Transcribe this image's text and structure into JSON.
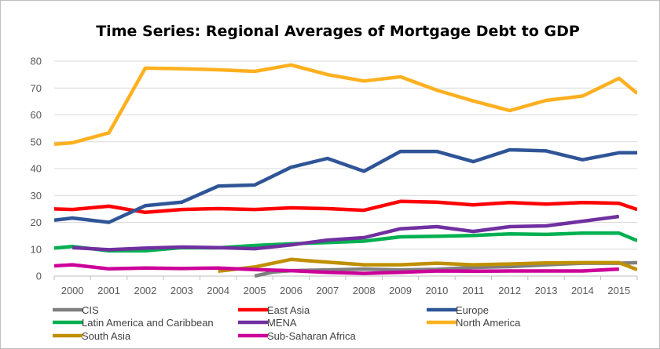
{
  "chart_data": {
    "type": "line",
    "title": "Time Series: Regional Averages of Mortgage Debt to GDP",
    "xlabel": "",
    "ylabel": "",
    "ylim": [
      0,
      80
    ],
    "yticks": [
      0,
      10,
      20,
      30,
      40,
      50,
      60,
      70,
      80
    ],
    "categories": [
      "2000",
      "2001",
      "2002",
      "2003",
      "2004",
      "2005",
      "2006",
      "2007",
      "2008",
      "2009",
      "2010",
      "2011",
      "2012",
      "2013",
      "2014",
      "2015"
    ],
    "x_start": 1999.5,
    "x_end": 2015.5,
    "grid": true,
    "legend_position": "bottom",
    "series": [
      {
        "name": "CIS",
        "color": "#7f7f7f",
        "points": [
          [
            2005,
            0
          ],
          [
            2005.5,
            1.5
          ],
          [
            2006,
            2
          ],
          [
            2007,
            2.3
          ],
          [
            2008,
            2.6
          ],
          [
            2009,
            2.3
          ],
          [
            2010,
            2.5
          ],
          [
            2011,
            3.2
          ],
          [
            2012,
            3.5
          ],
          [
            2013,
            4.2
          ],
          [
            2014,
            4.8
          ],
          [
            2015,
            4.8
          ],
          [
            2015.5,
            5
          ]
        ]
      },
      {
        "name": "East Asia",
        "color": "#ff0000",
        "points": [
          [
            1999.5,
            25
          ],
          [
            2000,
            24.8
          ],
          [
            2001,
            26
          ],
          [
            2002,
            23.7
          ],
          [
            2003,
            24.8
          ],
          [
            2004,
            25.1
          ],
          [
            2005,
            24.8
          ],
          [
            2006,
            25.4
          ],
          [
            2007,
            25.1
          ],
          [
            2008,
            24.5
          ],
          [
            2009,
            27.8
          ],
          [
            2010,
            27.5
          ],
          [
            2011,
            26.5
          ],
          [
            2012,
            27.4
          ],
          [
            2013,
            26.8
          ],
          [
            2014,
            27.4
          ],
          [
            2015,
            27.1
          ],
          [
            2015.5,
            24.8
          ]
        ]
      },
      {
        "name": "Europe",
        "color": "#2f5597",
        "points": [
          [
            1999.5,
            20.8
          ],
          [
            2000,
            21.6
          ],
          [
            2001,
            20
          ],
          [
            2002,
            26.2
          ],
          [
            2003,
            27.5
          ],
          [
            2004,
            33.5
          ],
          [
            2005,
            33.9
          ],
          [
            2006,
            40.5
          ],
          [
            2007,
            43.8
          ],
          [
            2008,
            39
          ],
          [
            2009,
            46.4
          ],
          [
            2010,
            46.4
          ],
          [
            2011,
            42.6
          ],
          [
            2012,
            47
          ],
          [
            2013,
            46.6
          ],
          [
            2014,
            43.3
          ],
          [
            2015,
            45.9
          ],
          [
            2015.5,
            45.9
          ]
        ]
      },
      {
        "name": "Latin America and Caribbean",
        "color": "#00b050",
        "points": [
          [
            1999.5,
            10.4
          ],
          [
            2000,
            11
          ],
          [
            2001,
            9.4
          ],
          [
            2002,
            9.4
          ],
          [
            2003,
            10.6
          ],
          [
            2004,
            10.5
          ],
          [
            2005,
            11.4
          ],
          [
            2006,
            12
          ],
          [
            2007,
            12.5
          ],
          [
            2008,
            13
          ],
          [
            2009,
            14.6
          ],
          [
            2010,
            14.8
          ],
          [
            2011,
            15.1
          ],
          [
            2012,
            15.7
          ],
          [
            2013,
            15.5
          ],
          [
            2014,
            16
          ],
          [
            2015,
            16
          ],
          [
            2015.5,
            13.2
          ]
        ]
      },
      {
        "name": "MENA",
        "color": "#7030a0",
        "points": [
          [
            2000,
            10.6
          ],
          [
            2001,
            9.8
          ],
          [
            2002,
            10.4
          ],
          [
            2003,
            10.8
          ],
          [
            2004,
            10.6
          ],
          [
            2005,
            10.2
          ],
          [
            2006,
            11.6
          ],
          [
            2007,
            13.4
          ],
          [
            2008,
            14.3
          ],
          [
            2009,
            17.6
          ],
          [
            2010,
            18.4
          ],
          [
            2011,
            16.6
          ],
          [
            2012,
            18.4
          ],
          [
            2013,
            18.7
          ],
          [
            2014,
            20.4
          ],
          [
            2015,
            22.2
          ]
        ]
      },
      {
        "name": "North America",
        "color": "#ffb020",
        "points": [
          [
            1999.5,
            49.1
          ],
          [
            2000,
            49.6
          ],
          [
            2001,
            53.3
          ],
          [
            2002,
            77.4
          ],
          [
            2003,
            77.2
          ],
          [
            2004,
            76.8
          ],
          [
            2005,
            76.2
          ],
          [
            2006,
            78.6
          ],
          [
            2007,
            75
          ],
          [
            2008,
            72.6
          ],
          [
            2009,
            74.2
          ],
          [
            2010,
            69.2
          ],
          [
            2011,
            65.2
          ],
          [
            2012,
            61.6
          ],
          [
            2013,
            65.4
          ],
          [
            2014,
            67
          ],
          [
            2015,
            73.6
          ],
          [
            2015.5,
            68
          ]
        ]
      },
      {
        "name": "South Asia",
        "color": "#bf9000",
        "points": [
          [
            2004,
            1.8
          ],
          [
            2005,
            3.4
          ],
          [
            2006,
            6.2
          ],
          [
            2007,
            5.2
          ],
          [
            2008,
            4.2
          ],
          [
            2009,
            4.2
          ],
          [
            2010,
            4.8
          ],
          [
            2011,
            4.2
          ],
          [
            2012,
            4.5
          ],
          [
            2013,
            4.9
          ],
          [
            2014,
            5
          ],
          [
            2015,
            5
          ],
          [
            2015.5,
            2.4
          ]
        ]
      },
      {
        "name": "Sub-Saharan Africa",
        "color": "#cc0099",
        "points": [
          [
            1999.5,
            3.8
          ],
          [
            2000,
            4.2
          ],
          [
            2001,
            2.7
          ],
          [
            2002,
            3
          ],
          [
            2003,
            2.8
          ],
          [
            2004,
            3
          ],
          [
            2005,
            2.4
          ],
          [
            2006,
            2
          ],
          [
            2007,
            1.4
          ],
          [
            2008,
            1
          ],
          [
            2009,
            1.4
          ],
          [
            2010,
            1.9
          ],
          [
            2011,
            1.8
          ],
          [
            2012,
            1.9
          ],
          [
            2013,
            1.9
          ],
          [
            2014,
            1.9
          ],
          [
            2015,
            2.6
          ]
        ]
      }
    ]
  }
}
